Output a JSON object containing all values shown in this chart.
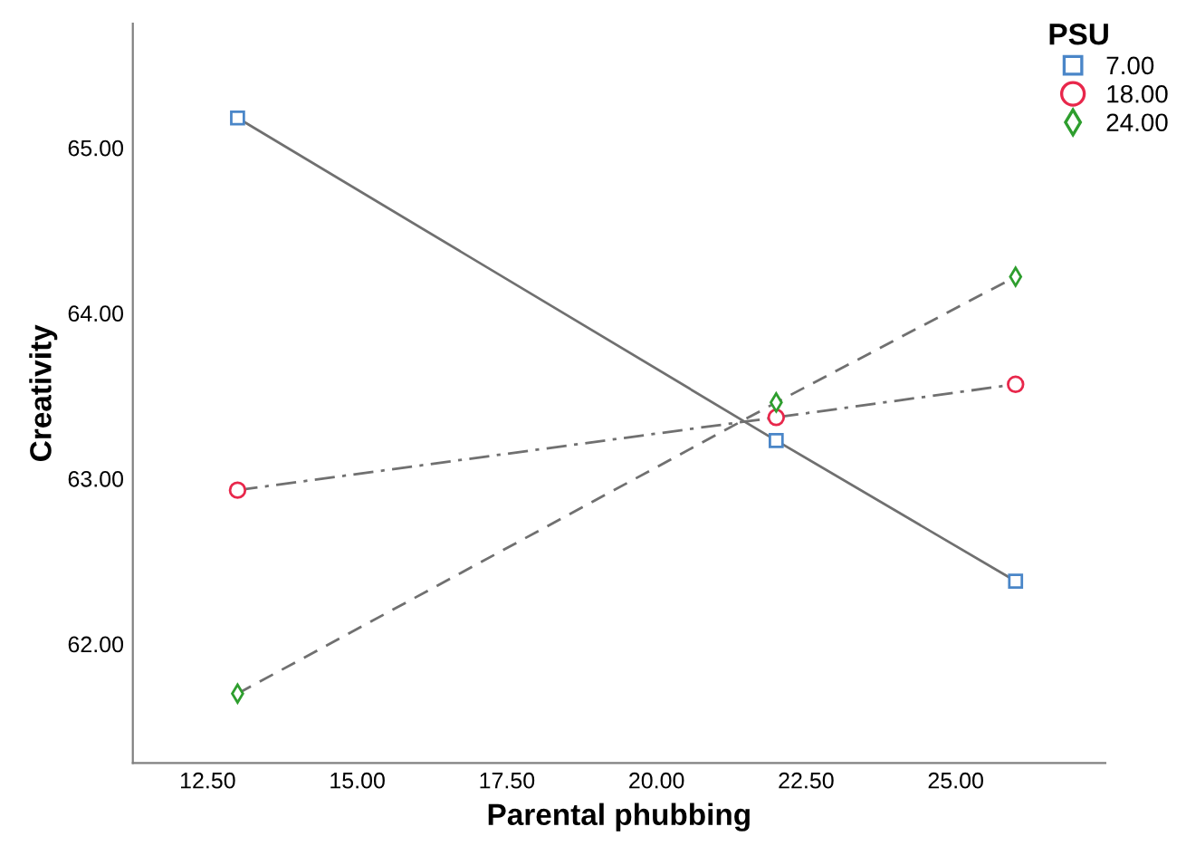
{
  "chart_data": {
    "type": "line",
    "xlabel": "Parental phubbing",
    "ylabel": "Creativity",
    "legend_title": "PSU",
    "legend": "top right",
    "x": [
      13,
      22,
      26
    ],
    "series": [
      {
        "name": "7.00",
        "color": "#4a86c8",
        "marker": "square",
        "line_style": "solid",
        "values": [
          65.18,
          63.23,
          62.38
        ]
      },
      {
        "name": "18.00",
        "color": "#e8274b",
        "marker": "circle",
        "line_style": "dashdot",
        "values": [
          62.93,
          63.37,
          63.57
        ]
      },
      {
        "name": "24.00",
        "color": "#2e9e2e",
        "marker": "diamond",
        "line_style": "dashed",
        "values": [
          61.7,
          63.46,
          64.22
        ]
      }
    ],
    "xlim": [
      11.25,
      27.5
    ],
    "ylim": [
      61.28,
      65.75
    ],
    "xticks": [
      {
        "value": 12.5,
        "label": "12.50"
      },
      {
        "value": 15,
        "label": "15.00"
      },
      {
        "value": 17.5,
        "label": "17.50"
      },
      {
        "value": 20,
        "label": "20.00"
      },
      {
        "value": 22.5,
        "label": "22.50"
      },
      {
        "value": 25,
        "label": "25.00"
      }
    ],
    "yticks": [
      {
        "value": 62,
        "label": "62.00"
      },
      {
        "value": 63,
        "label": "63.00"
      },
      {
        "value": 64,
        "label": "64.00"
      },
      {
        "value": 65,
        "label": "65.00"
      }
    ],
    "grid": false
  }
}
